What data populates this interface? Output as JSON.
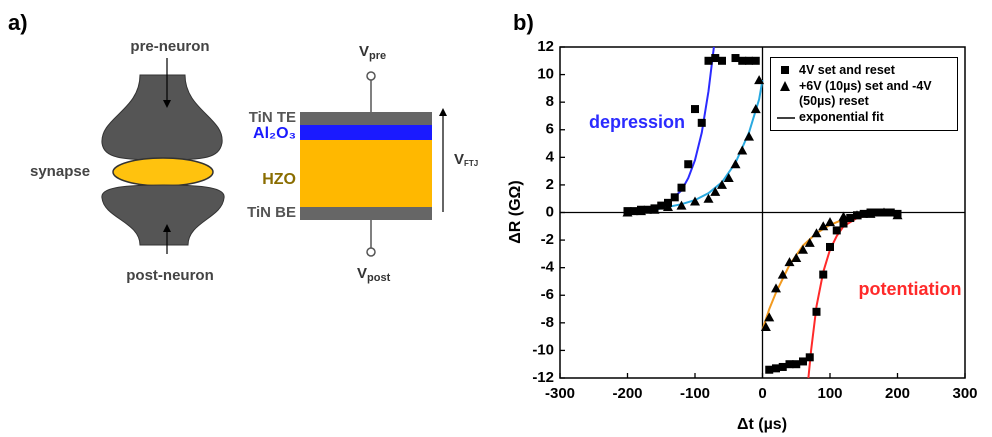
{
  "panel_a": {
    "label": "a)",
    "pre_neuron": "pre-neuron",
    "post_neuron": "post-neuron",
    "synapse": "synapse",
    "layers": {
      "top": "TiN TE",
      "barrier": "Al₂O₃",
      "ferro": "HZO",
      "bottom": "TiN BE"
    },
    "v_pre": {
      "symbol": "V",
      "subscript": "pre"
    },
    "v_post": {
      "symbol": "V",
      "subscript": "post"
    },
    "v_ftj": {
      "symbol": "V",
      "subscript": "FTJ"
    }
  },
  "chart_data": {
    "type": "scatter",
    "panel_label": "b)",
    "xlabel": "Δt (µs)",
    "ylabel": "ΔR (GΩ)",
    "xlim": [
      -300,
      300
    ],
    "ylim": [
      -12,
      12
    ],
    "xticks": [
      -300,
      -200,
      -100,
      0,
      100,
      200,
      300
    ],
    "yticks": [
      -12,
      -10,
      -8,
      -6,
      -4,
      -2,
      0,
      2,
      4,
      6,
      8,
      10,
      12
    ],
    "series": [
      {
        "name": "4V set and reset",
        "marker": "square",
        "color": "#000000",
        "x": [
          -200,
          -190,
          -180,
          -170,
          -160,
          -150,
          -140,
          -130,
          -120,
          -110,
          -100,
          -90,
          -80,
          -70,
          -60,
          -40,
          -30,
          -20,
          -10,
          10,
          20,
          30,
          40,
          50,
          60,
          70,
          80,
          90,
          100,
          110,
          120,
          130,
          140,
          150,
          160,
          170,
          180,
          190,
          200
        ],
        "values": [
          0.1,
          0.1,
          0.2,
          0.2,
          0.3,
          0.5,
          0.7,
          1.1,
          1.8,
          3.5,
          7.5,
          6.5,
          11,
          11.2,
          11,
          11.2,
          11,
          11,
          11,
          -11.4,
          -11.3,
          -11.2,
          -11,
          -11,
          -10.8,
          -10.5,
          -7.2,
          -4.5,
          -2.5,
          -1.3,
          -0.8,
          -0.4,
          -0.2,
          -0.1,
          0,
          0,
          0,
          0,
          -0.1
        ]
      },
      {
        "name": "+6V (10µs) set and -4V (50µs) reset",
        "marker": "triangle",
        "color": "#000000",
        "x": [
          -200,
          -180,
          -160,
          -140,
          -120,
          -100,
          -80,
          -70,
          -60,
          -50,
          -40,
          -30,
          -20,
          -10,
          -5,
          5,
          10,
          20,
          30,
          40,
          50,
          60,
          70,
          80,
          90,
          100,
          120,
          140,
          160,
          180,
          200
        ],
        "values": [
          0,
          0.1,
          0.2,
          0.4,
          0.5,
          0.8,
          1.0,
          1.5,
          2.0,
          2.5,
          3.5,
          4.5,
          5.5,
          7.5,
          9.6,
          -8.3,
          -7.6,
          -5.5,
          -4.5,
          -3.6,
          -3.3,
          -2.7,
          -2.2,
          -1.5,
          -1.0,
          -0.7,
          -0.3,
          -0.2,
          -0.1,
          0,
          -0.2
        ]
      }
    ],
    "fit_label": "exponential fit",
    "fits": [
      {
        "color": "#2b2bff",
        "x": [
          -200,
          -180,
          -160,
          -140,
          -120,
          -110,
          -100,
          -90,
          -80,
          -72
        ],
        "values": [
          0.05,
          0.15,
          0.3,
          0.7,
          1.6,
          2.5,
          3.8,
          5.8,
          8.8,
          12
        ]
      },
      {
        "color": "#29a9e0",
        "x": [
          -200,
          -160,
          -120,
          -100,
          -80,
          -60,
          -40,
          -20,
          -5,
          0
        ],
        "values": [
          0.05,
          0.2,
          0.6,
          0.9,
          1.4,
          2.2,
          3.6,
          5.8,
          8.2,
          9.6
        ]
      },
      {
        "color": "#ff2a2a",
        "x": [
          68,
          72,
          80,
          90,
          100,
          110,
          120,
          140,
          160,
          200
        ],
        "values": [
          -12,
          -10,
          -6.8,
          -4.3,
          -2.7,
          -1.7,
          -1.0,
          -0.4,
          -0.15,
          0
        ]
      },
      {
        "color": "#f29a1f",
        "x": [
          0,
          10,
          20,
          40,
          60,
          80,
          100,
          120,
          150,
          200
        ],
        "values": [
          -8.5,
          -7,
          -5.8,
          -3.8,
          -2.4,
          -1.5,
          -0.9,
          -0.5,
          -0.2,
          0
        ]
      }
    ],
    "annotations": [
      {
        "text": "depression",
        "color": "#2b2bff"
      },
      {
        "text": "potentiation",
        "color": "#ff2a2a"
      }
    ]
  }
}
